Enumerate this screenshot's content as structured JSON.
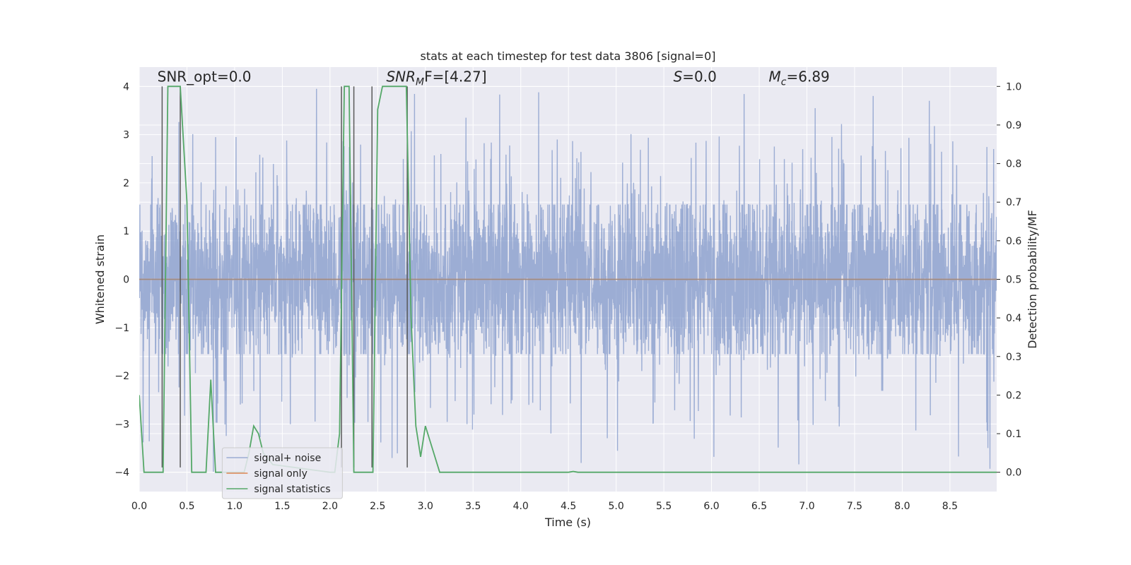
{
  "chart_data": {
    "type": "line",
    "title": "stats at each timestep for test data 3806 [signal=0]",
    "xlabel": "Time (s)",
    "ylabel": "Whitened strain",
    "ylabel_right": "Detection probability/MF",
    "xlim": [
      0.0,
      8.99
    ],
    "ylim": [
      -4.4,
      4.4
    ],
    "ylim_right": [
      -0.05,
      1.05
    ],
    "xticks": [
      "0.0",
      "0.5",
      "1.0",
      "1.5",
      "2.0",
      "2.5",
      "3.0",
      "3.5",
      "4.0",
      "4.5",
      "5.0",
      "5.5",
      "6.0",
      "6.5",
      "7.0",
      "7.5",
      "8.0",
      "8.5"
    ],
    "yticks": [
      "−4",
      "−3",
      "−2",
      "−1",
      "0",
      "1",
      "2",
      "3",
      "4"
    ],
    "yticks_right": [
      "0.0",
      "0.1",
      "0.2",
      "0.3",
      "0.4",
      "0.5",
      "0.6",
      "0.7",
      "0.8",
      "0.9",
      "1.0"
    ],
    "grid": true,
    "legend_position": "lower-left",
    "annotations": [
      {
        "text": "SNR_opt=0.0",
        "x": 0.19,
        "y": 4.1
      },
      {
        "text": "SNR",
        "sub": "M",
        "tail": "F=[4.27]",
        "italic": true,
        "x": 2.59,
        "y": 4.1
      },
      {
        "text": "S",
        "tail": "=0.0",
        "italic": true,
        "x": 5.6,
        "y": 4.1
      },
      {
        "text": "M",
        "sub": "c",
        "tail": "=6.89",
        "italic": true,
        "x": 6.6,
        "y": 4.1
      }
    ],
    "series": [
      {
        "name": "signal+ noise",
        "color": "#7b93c8",
        "opacity": 0.7,
        "description": "whitened noise, band roughly ±1.6 with spikes up to ±4",
        "envelope": {
          "core": 1.55,
          "spike_max": 4.0
        }
      },
      {
        "name": "signal only",
        "color": "#dd8452",
        "x": [
          0.0,
          8.99
        ],
        "y": [
          0.0,
          0.0
        ]
      },
      {
        "name": "signal statistics",
        "color": "#55a868",
        "axis": "right",
        "x": [
          0.0,
          0.05,
          0.15,
          0.25,
          0.3,
          0.4,
          0.43,
          0.5,
          0.55,
          0.6,
          0.7,
          0.75,
          0.8,
          0.85,
          0.9,
          1.0,
          1.1,
          1.15,
          1.2,
          1.25,
          1.3,
          1.4,
          2.0,
          2.05,
          2.1,
          2.15,
          2.2,
          2.25,
          2.3,
          2.35,
          2.4,
          2.45,
          2.5,
          2.55,
          2.65,
          2.75,
          2.8,
          2.85,
          2.9,
          2.95,
          3.0,
          3.05,
          3.15,
          3.25,
          4.5,
          4.55,
          4.6,
          8.99
        ],
        "y": [
          0.2,
          0.0,
          0.0,
          0.0,
          1.0,
          1.0,
          1.0,
          0.7,
          0.0,
          0.0,
          0.0,
          0.24,
          0.0,
          0.0,
          0.0,
          0.0,
          0.0,
          0.05,
          0.12,
          0.1,
          0.05,
          0.02,
          0.0,
          0.0,
          0.1,
          1.0,
          1.0,
          0.0,
          0.0,
          0.0,
          0.0,
          0.0,
          0.94,
          1.0,
          1.0,
          1.0,
          1.0,
          0.4,
          0.12,
          0.04,
          0.12,
          0.08,
          0.0,
          0.0,
          0.0,
          0.002,
          0.0,
          0.0
        ]
      }
    ],
    "vertical_markers": {
      "color": "#595959",
      "items": [
        {
          "x": 0.24,
          "y0": -3.9,
          "y1": 4.0
        },
        {
          "x": 0.43,
          "y0": -3.9,
          "y1": 4.0
        },
        {
          "x": 2.12,
          "y0": -3.9,
          "y1": 4.0
        },
        {
          "x": 2.25,
          "y0": -3.9,
          "y1": 4.0
        },
        {
          "x": 2.44,
          "y0": -3.9,
          "y1": 4.0
        },
        {
          "x": 2.81,
          "y0": -3.9,
          "y1": 4.0
        }
      ]
    }
  }
}
